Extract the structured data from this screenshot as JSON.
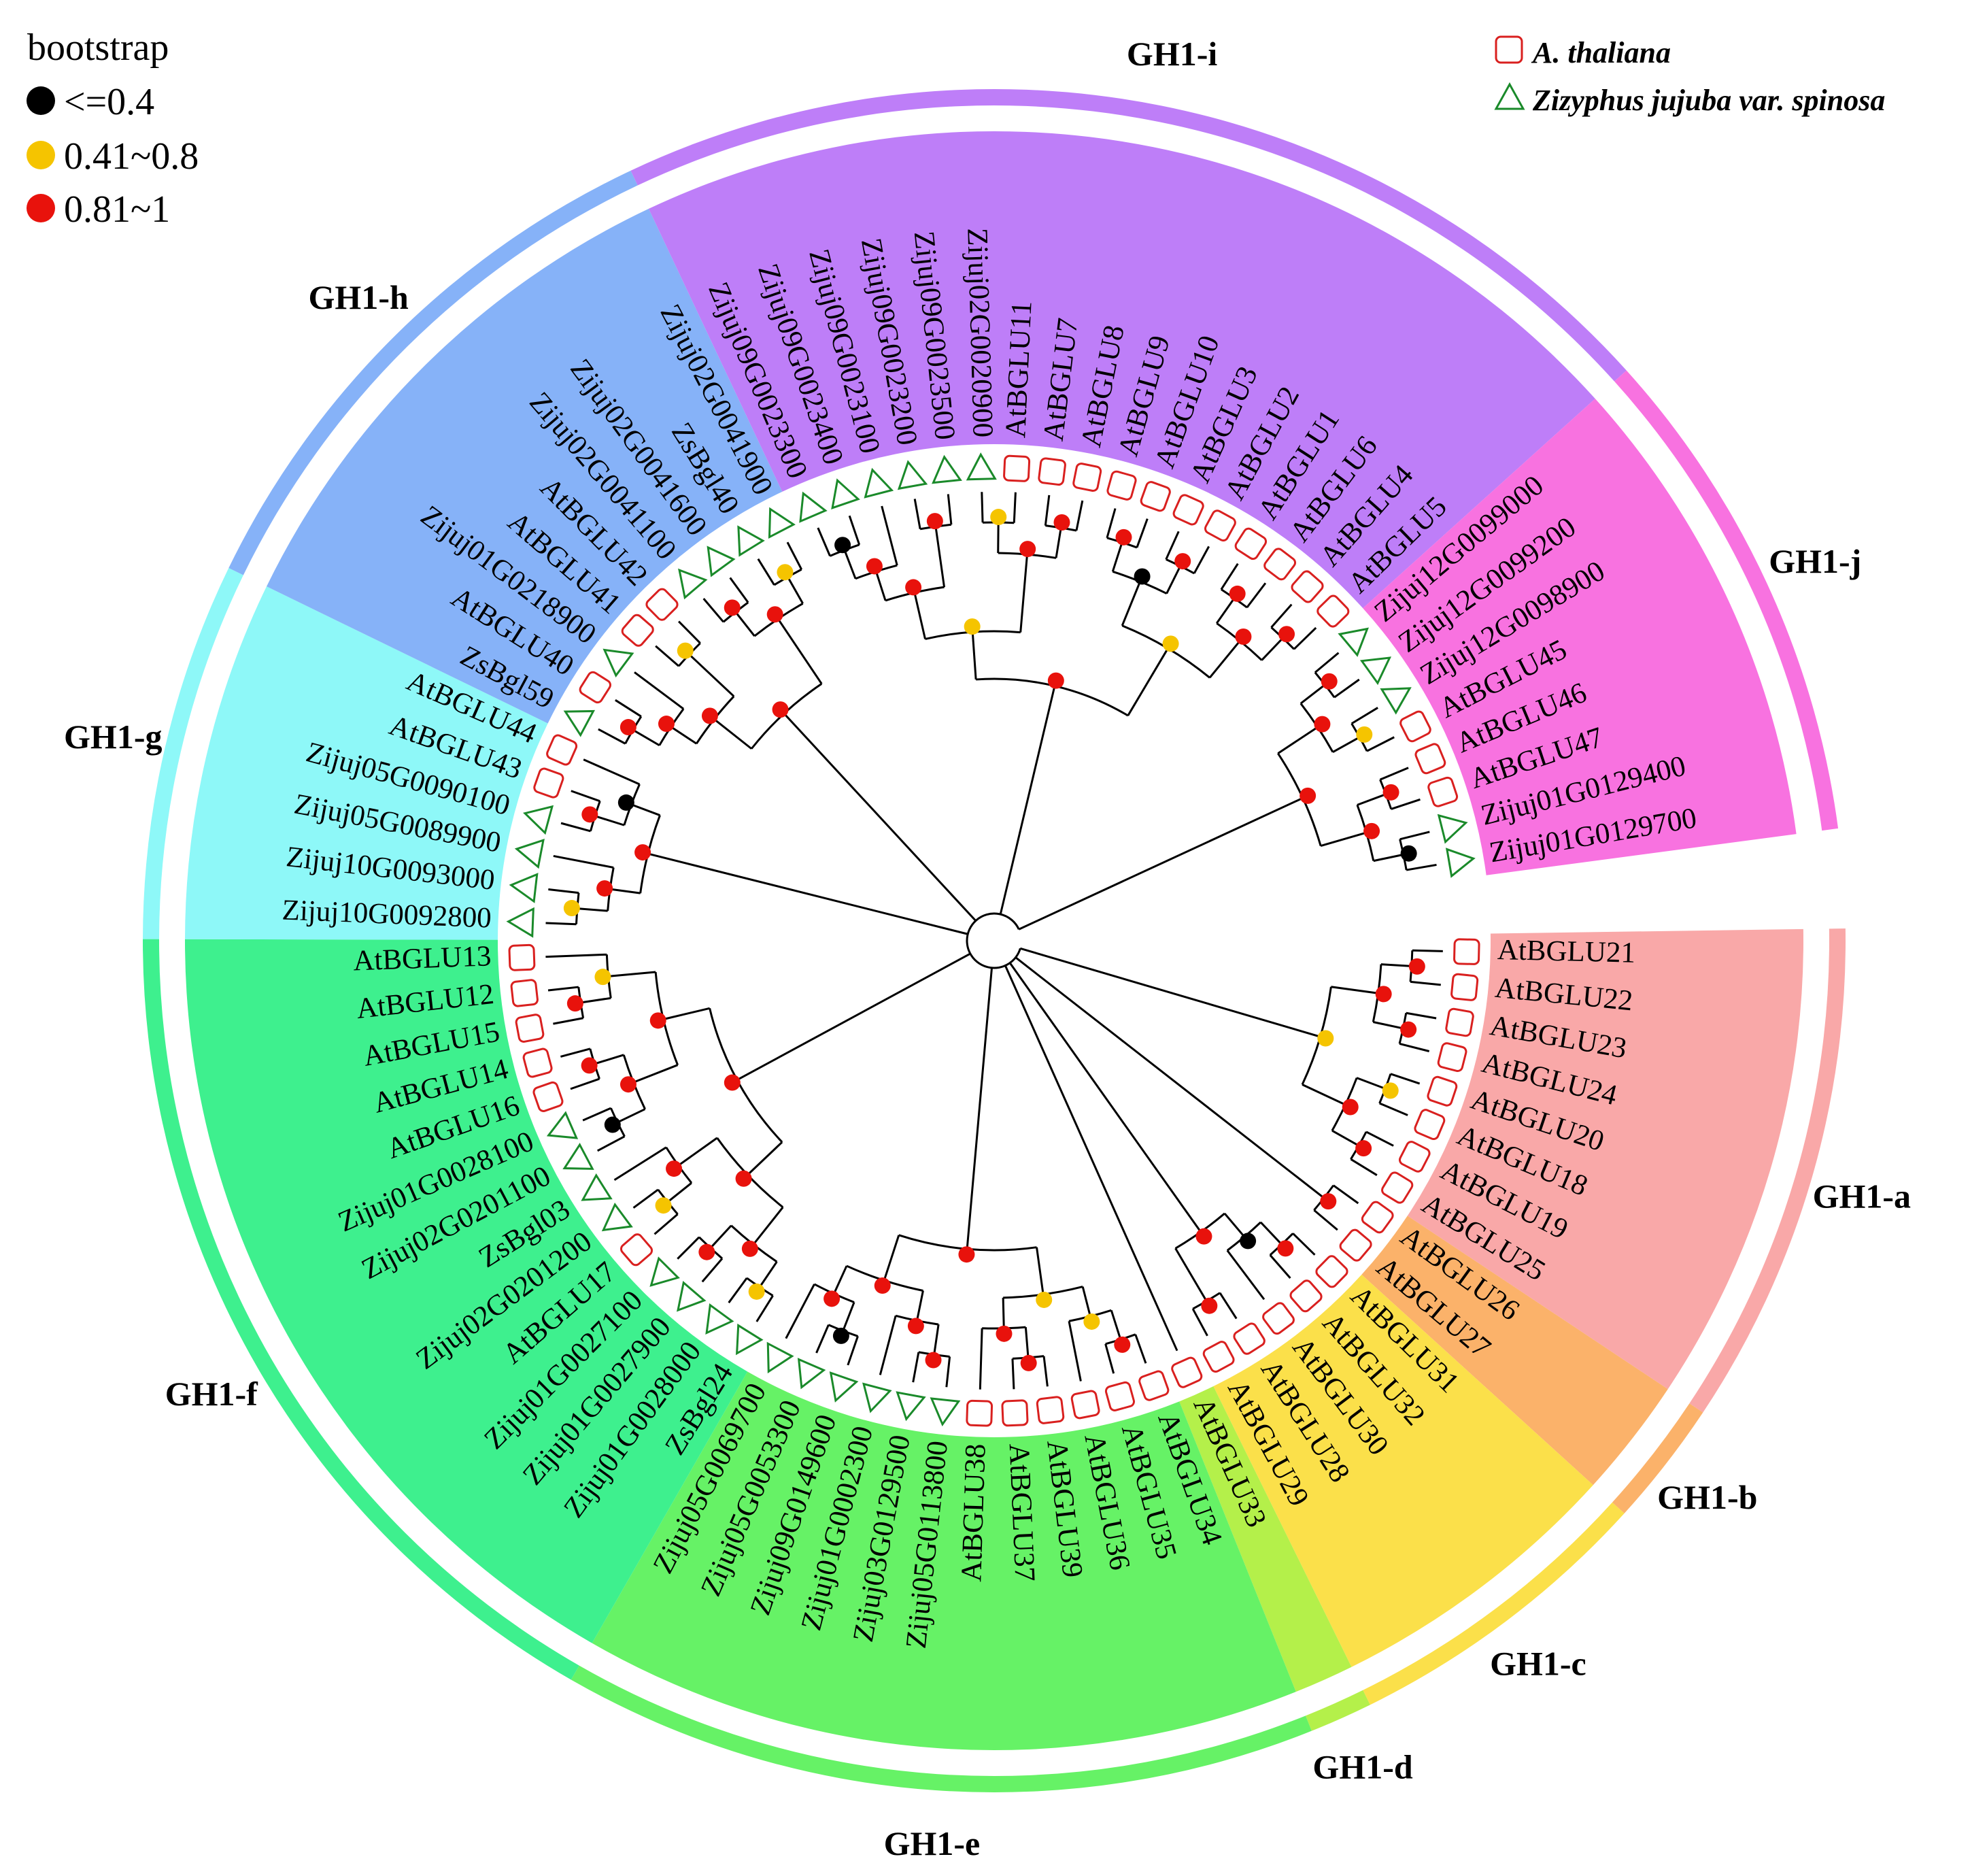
{
  "legend": {
    "title": "bootstrap",
    "items": [
      {
        "label": "<=0.4",
        "color": "#000000"
      },
      {
        "label": "0.41~0.8",
        "color": "#f5c400"
      },
      {
        "label": "0.81~1",
        "color": "#e8120c"
      }
    ]
  },
  "species_legend": [
    {
      "label": "A. thaliana",
      "shape": "square",
      "color": "#d9201f"
    },
    {
      "label": "Zizyphus jujuba var. spinosa",
      "shape": "triangle",
      "color": "#1a8a2a"
    }
  ],
  "groups": [
    {
      "name": "GH1-a",
      "color": "#f9a8a8",
      "leaves": [
        "AtBGLU21",
        "AtBGLU22",
        "AtBGLU23",
        "AtBGLU24",
        "AtBGLU20",
        "AtBGLU18",
        "AtBGLU19",
        "AtBGLU25"
      ]
    },
    {
      "name": "GH1-b",
      "color": "#fbb26a",
      "leaves": [
        "AtBGLU26",
        "AtBGLU27"
      ]
    },
    {
      "name": "GH1-c",
      "color": "#fbe04a",
      "leaves": [
        "AtBGLU31",
        "AtBGLU32",
        "AtBGLU30",
        "AtBGLU28",
        "AtBGLU29"
      ]
    },
    {
      "name": "GH1-d",
      "color": "#b4f04a",
      "leaves": [
        "AtBGLU33"
      ]
    },
    {
      "name": "GH1-e",
      "color": "#66f266",
      "leaves": [
        "AtBGLU34",
        "AtBGLU35",
        "AtBGLU36",
        "AtBGLU39",
        "AtBGLU37",
        "AtBGLU38",
        "Zijuj05G0113800",
        "Zijuj03G0129500",
        "Zijuj01G0002300",
        "Zijuj09G0149600",
        "Zijuj05G0053300",
        "Zijuj05G0069700"
      ]
    },
    {
      "name": "GH1-f",
      "color": "#3ef08e",
      "leaves": [
        "ZsBgl24",
        "Zijuj01G0028000",
        "Zijuj01G0027900",
        "Zijuj01G0027100",
        "AtBGLU17",
        "Zijuj02G0201200",
        "ZsBgl03",
        "Zijuj02G0201100",
        "Zijuj01G0028100",
        "AtBGLU16",
        "AtBGLU14",
        "AtBGLU15",
        "AtBGLU12",
        "AtBGLU13"
      ]
    },
    {
      "name": "GH1-g",
      "color": "#8ef8f8",
      "leaves": [
        "Zijuj10G0092800",
        "Zijuj10G0093000",
        "Zijuj05G0089900",
        "Zijuj05G0090100",
        "AtBGLU43",
        "AtBGLU44"
      ]
    },
    {
      "name": "GH1-h",
      "color": "#86b2f8",
      "leaves": [
        "ZsBgl59",
        "AtBGLU40",
        "Zijuj01G0218900",
        "AtBGLU41",
        "AtBGLU42",
        "Zijuj02G0041100",
        "Zijuj02G0041600",
        "ZsBgl40",
        "Zijuj02G0041900"
      ]
    },
    {
      "name": "GH1-i",
      "color": "#be7ef8",
      "leaves": [
        "Zijuj09G0023300",
        "Zijuj09G0023400",
        "Zijuj09G0023100",
        "Zijuj09G0023200",
        "Zijuj09G0023500",
        "Zijuj02G0020900",
        "AtBGLU11",
        "AtBGLU7",
        "AtBGLU8",
        "AtBGLU9",
        "AtBGLU10",
        "AtBGLU3",
        "AtBGLU2",
        "AtBGLU1",
        "AtBGLU6",
        "AtBGLU4",
        "AtBGLU5"
      ]
    },
    {
      "name": "GH1-j",
      "color": "#f872e0",
      "leaves": [
        "Zijuj12G0099000",
        "Zijuj12G0099200",
        "Zijuj12G0098900",
        "AtBGLU45",
        "AtBGLU46",
        "AtBGLU47",
        "Zijuj01G0129400",
        "Zijuj01G0129700"
      ]
    }
  ],
  "colors": {
    "at_marker": "#d9201f",
    "zj_marker": "#1a8a2a",
    "branch": "#000000"
  }
}
